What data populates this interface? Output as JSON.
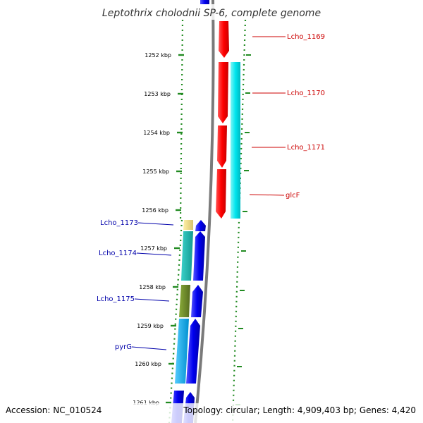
{
  "title": "Leptothrix cholodnii SP-6, complete genome",
  "footer": {
    "accession": "Accession: NC_010524",
    "summary": "Topology: circular; Length: 4,909,403 bp; Genes: 4,420"
  },
  "ticks": [
    "1252 kbp",
    "1253 kbp",
    "1254 kbp",
    "1255 kbp",
    "1256 kbp",
    "1257 kbp",
    "1258 kbp",
    "1259 kbp",
    "1260 kbp",
    "1261 kbp"
  ],
  "genes_forward": [
    {
      "label": "Lcho_1169",
      "color": "#cc0000"
    },
    {
      "label": "Lcho_1170",
      "color": "#cc0000"
    },
    {
      "label": "Lcho_1171",
      "color": "#cc0000"
    },
    {
      "label": "glcF",
      "color": "#cc0000"
    }
  ],
  "genes_reverse": [
    {
      "label": "Lcho_1173",
      "color": "#0000aa"
    },
    {
      "label": "Lcho_1174",
      "color": "#0000aa"
    },
    {
      "label": "Lcho_1175",
      "color": "#0000aa"
    },
    {
      "label": "pyrG",
      "color": "#0000aa"
    }
  ],
  "colors": {
    "forward_cds": "#ff0000",
    "reverse_cds": "#0000ee",
    "cog_cyan": "#00e0e6",
    "cog_teal": "#20b8b0",
    "cog_khaki": "#f0dc82",
    "cog_olive": "#6b8e23",
    "cog_skyblue": "#00aaee",
    "dotted_track": "#228b22"
  }
}
